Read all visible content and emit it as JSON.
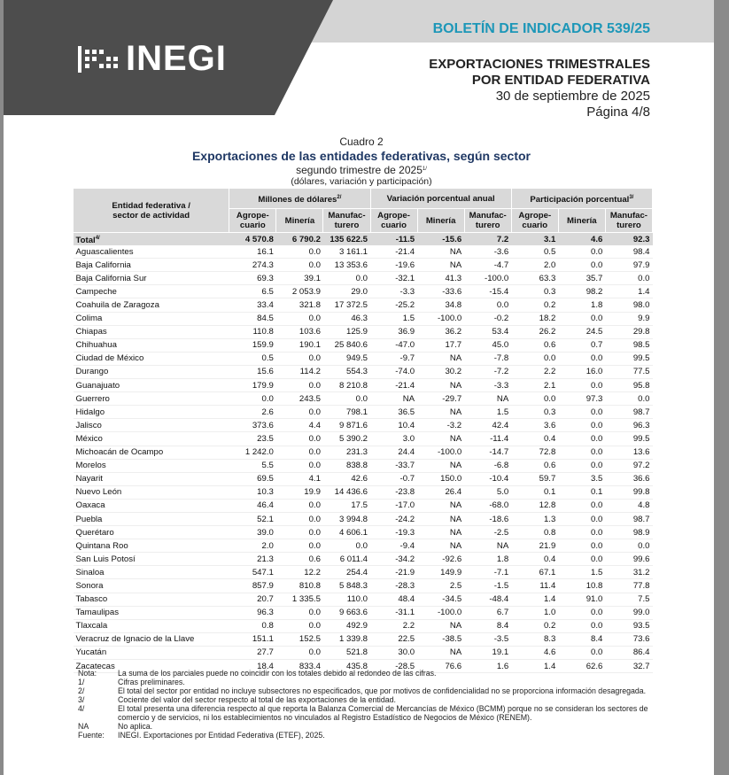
{
  "header": {
    "logo": "INEGI",
    "bulletin": "BOLETÍN DE INDICADOR 539/25",
    "title_lines": [
      "EXPORTACIONES TRIMESTRALES",
      "POR ENTIDAD FEDERATIVA"
    ],
    "date": "30 de septiembre de 2025",
    "page": "Página 4/8"
  },
  "table": {
    "caption": "Cuadro 2",
    "title": "Exportaciones de las entidades federativas, según sector",
    "subtitle": {
      "text": "segundo trimestre de 2025",
      "note": "1/"
    },
    "units": "(dólares, variación y participación)",
    "first_column": "Entidad federativa / sector de actividad",
    "groups": [
      {
        "label": "Millones de dólares",
        "note": "2/"
      },
      {
        "label": "Variación porcentual anual"
      },
      {
        "label": "Participación porcentual",
        "note": "3/"
      }
    ],
    "subcolumns": [
      "Agrope-cuario",
      "Minería",
      "Manufac-turero",
      "Agrope-cuario",
      "Minería",
      "Manufac-turero",
      "Agrope-cuario",
      "Minería",
      "Manufac-turero"
    ],
    "total": {
      "name": "Total",
      "note": "4/",
      "values": [
        "4 570.8",
        "6 790.2",
        "135 622.5",
        "-11.5",
        "-15.6",
        "7.2",
        "3.1",
        "4.6",
        "92.3"
      ]
    },
    "rows": [
      [
        "Aguascalientes",
        "16.1",
        "0.0",
        "3 161.1",
        "-21.4",
        "NA",
        "-3.6",
        "0.5",
        "0.0",
        "98.4"
      ],
      [
        "Baja California",
        "274.3",
        "0.0",
        "13 353.6",
        "-19.6",
        "NA",
        "-4.7",
        "2.0",
        "0.0",
        "97.9"
      ],
      [
        "Baja California Sur",
        "69.3",
        "39.1",
        "0.0",
        "-32.1",
        "41.3",
        "-100.0",
        "63.3",
        "35.7",
        "0.0"
      ],
      [
        "Campeche",
        "6.5",
        "2 053.9",
        "29.0",
        "-3.3",
        "-33.6",
        "-15.4",
        "0.3",
        "98.2",
        "1.4"
      ],
      [
        "Coahuila de Zaragoza",
        "33.4",
        "321.8",
        "17 372.5",
        "-25.2",
        "34.8",
        "0.0",
        "0.2",
        "1.8",
        "98.0"
      ],
      [
        "Colima",
        "84.5",
        "0.0",
        "46.3",
        "1.5",
        "-100.0",
        "-0.2",
        "18.2",
        "0.0",
        "9.9"
      ],
      [
        "Chiapas",
        "110.8",
        "103.6",
        "125.9",
        "36.9",
        "36.2",
        "53.4",
        "26.2",
        "24.5",
        "29.8"
      ],
      [
        "Chihuahua",
        "159.9",
        "190.1",
        "25 840.6",
        "-47.0",
        "17.7",
        "45.0",
        "0.6",
        "0.7",
        "98.5"
      ],
      [
        "Ciudad de México",
        "0.5",
        "0.0",
        "949.5",
        "-9.7",
        "NA",
        "-7.8",
        "0.0",
        "0.0",
        "99.5"
      ],
      [
        "Durango",
        "15.6",
        "114.2",
        "554.3",
        "-74.0",
        "30.2",
        "-7.2",
        "2.2",
        "16.0",
        "77.5"
      ],
      [
        "Guanajuato",
        "179.9",
        "0.0",
        "8 210.8",
        "-21.4",
        "NA",
        "-3.3",
        "2.1",
        "0.0",
        "95.8"
      ],
      [
        "Guerrero",
        "0.0",
        "243.5",
        "0.0",
        "NA",
        "-29.7",
        "NA",
        "0.0",
        "97.3",
        "0.0"
      ],
      [
        "Hidalgo",
        "2.6",
        "0.0",
        "798.1",
        "36.5",
        "NA",
        "1.5",
        "0.3",
        "0.0",
        "98.7"
      ],
      [
        "Jalisco",
        "373.6",
        "4.4",
        "9 871.6",
        "10.4",
        "-3.2",
        "42.4",
        "3.6",
        "0.0",
        "96.3"
      ],
      [
        "México",
        "23.5",
        "0.0",
        "5 390.2",
        "3.0",
        "NA",
        "-11.4",
        "0.4",
        "0.0",
        "99.5"
      ],
      [
        "Michoacán de Ocampo",
        "1 242.0",
        "0.0",
        "231.3",
        "24.4",
        "-100.0",
        "-14.7",
        "72.8",
        "0.0",
        "13.6"
      ],
      [
        "Morelos",
        "5.5",
        "0.0",
        "838.8",
        "-33.7",
        "NA",
        "-6.8",
        "0.6",
        "0.0",
        "97.2"
      ],
      [
        "Nayarit",
        "69.5",
        "4.1",
        "42.6",
        "-0.7",
        "150.0",
        "-10.4",
        "59.7",
        "3.5",
        "36.6"
      ],
      [
        "Nuevo León",
        "10.3",
        "19.9",
        "14 436.6",
        "-23.8",
        "26.4",
        "5.0",
        "0.1",
        "0.1",
        "99.8"
      ],
      [
        "Oaxaca",
        "46.4",
        "0.0",
        "17.5",
        "-17.0",
        "NA",
        "-68.0",
        "12.8",
        "0.0",
        "4.8"
      ],
      [
        "Puebla",
        "52.1",
        "0.0",
        "3 994.8",
        "-24.2",
        "NA",
        "-18.6",
        "1.3",
        "0.0",
        "98.7"
      ],
      [
        "Querétaro",
        "39.0",
        "0.0",
        "4 606.1",
        "-19.3",
        "NA",
        "-2.5",
        "0.8",
        "0.0",
        "98.9"
      ],
      [
        "Quintana Roo",
        "2.0",
        "0.0",
        "0.0",
        "-9.4",
        "NA",
        "NA",
        "21.9",
        "0.0",
        "0.0"
      ],
      [
        "San Luis Potosí",
        "21.3",
        "0.6",
        "6 011.4",
        "-34.2",
        "-92.6",
        "1.8",
        "0.4",
        "0.0",
        "99.6"
      ],
      [
        "Sinaloa",
        "547.1",
        "12.2",
        "254.4",
        "-21.9",
        "149.9",
        "-7.1",
        "67.1",
        "1.5",
        "31.2"
      ],
      [
        "Sonora",
        "857.9",
        "810.8",
        "5 848.3",
        "-28.3",
        "2.5",
        "-1.5",
        "11.4",
        "10.8",
        "77.8"
      ],
      [
        "Tabasco",
        "20.7",
        "1 335.5",
        "110.0",
        "48.4",
        "-34.5",
        "-48.4",
        "1.4",
        "91.0",
        "7.5"
      ],
      [
        "Tamaulipas",
        "96.3",
        "0.0",
        "9 663.6",
        "-31.1",
        "-100.0",
        "6.7",
        "1.0",
        "0.0",
        "99.0"
      ],
      [
        "Tlaxcala",
        "0.8",
        "0.0",
        "492.9",
        "2.2",
        "NA",
        "8.4",
        "0.2",
        "0.0",
        "93.5"
      ],
      [
        "Veracruz de Ignacio de la Llave",
        "151.1",
        "152.5",
        "1 339.8",
        "22.5",
        "-38.5",
        "-3.5",
        "8.3",
        "8.4",
        "73.6"
      ],
      [
        "Yucatán",
        "27.7",
        "0.0",
        "521.8",
        "30.0",
        "NA",
        "19.1",
        "4.6",
        "0.0",
        "86.4"
      ],
      [
        "Zacatecas",
        "18.4",
        "833.4",
        "435.8",
        "-28.5",
        "76.6",
        "1.6",
        "1.4",
        "62.6",
        "32.7"
      ]
    ]
  },
  "notes": [
    {
      "mark": "Nota:",
      "text": "La suma de los parciales puede no coincidir con los totales debido al redondeo de las cifras."
    },
    {
      "mark": "1/",
      "text": "Cifras preliminares."
    },
    {
      "mark": "2/",
      "text": "El total del sector por entidad no incluye subsectores no especificados, que por motivos de confidencialidad no se proporciona información desagregada."
    },
    {
      "mark": "3/",
      "text": "Cociente del valor del sector respecto al total de las exportaciones de la entidad."
    },
    {
      "mark": "4/",
      "text": "El total presenta una diferencia respecto al que reporta la Balanza Comercial de Mercancías de México (BCMM) porque no se consideran los sectores de comercio y de servicios, ni los establecimientos no vinculados al Registro Estadístico de Negocios de México (RENEM)."
    },
    {
      "mark": "NA",
      "text": "No aplica."
    },
    {
      "mark": "Fuente:",
      "text": "INEGI. Exportaciones por Entidad Federativa (ETEF), 2025."
    }
  ]
}
